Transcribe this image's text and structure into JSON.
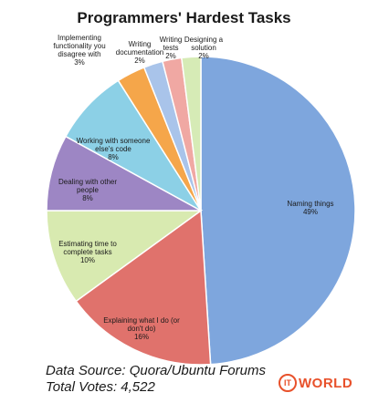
{
  "chart_data": {
    "type": "pie",
    "title": "Programmers' Hardest Tasks",
    "slices": [
      {
        "label": "Naming things",
        "percent_label": "49%",
        "value": 49,
        "color": "#7ea6dd"
      },
      {
        "label": "Explaining what I do (or don't do)",
        "percent_label": "16%",
        "value": 16,
        "color": "#e0726c"
      },
      {
        "label": "Estimating time to complete tasks",
        "percent_label": "10%",
        "value": 10,
        "color": "#d8eab0"
      },
      {
        "label": "Dealing with other people",
        "percent_label": "8%",
        "value": 8,
        "color": "#9d86c4"
      },
      {
        "label": "Working with someone else's code",
        "percent_label": "8%",
        "value": 8,
        "color": "#8cd0e6"
      },
      {
        "label": "Implementing functionality you disagree with",
        "percent_label": "3%",
        "value": 3,
        "color": "#f5a64a"
      },
      {
        "label": "Writing documentation",
        "percent_label": "2%",
        "value": 2,
        "color": "#a9c4ea"
      },
      {
        "label": "Writing tests",
        "percent_label": "2%",
        "value": 2,
        "color": "#f0a8a3"
      },
      {
        "label": "Designing a solution",
        "percent_label": "2%",
        "value": 2,
        "color": "#d6ebb6"
      }
    ],
    "start": "top, clockwise"
  },
  "footer": {
    "source": "Data Source: Quora/Ubuntu Forums",
    "votes": "Total Votes: 4,522"
  },
  "logo": {
    "it": "IT",
    "world": "WORLD"
  }
}
